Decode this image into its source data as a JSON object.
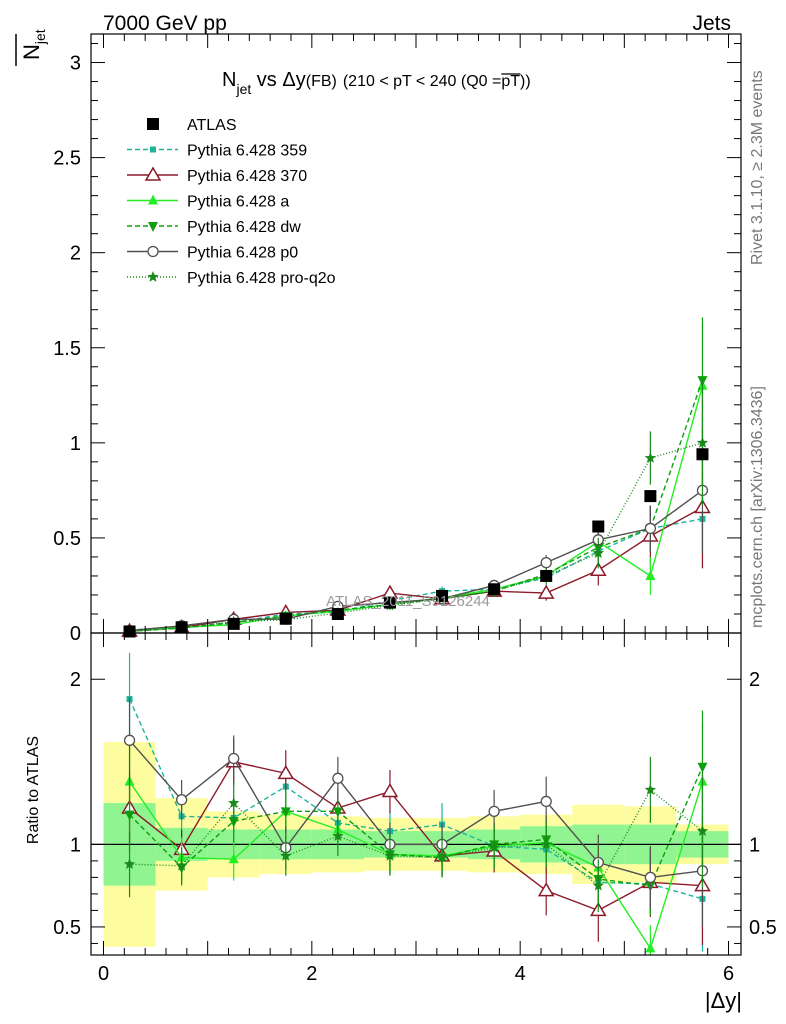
{
  "header": {
    "left": "7000 GeV pp",
    "right": "Jets"
  },
  "side_labels": {
    "rivet": "Rivet 3.1.10, ≥ 2.3M events",
    "mcplots": "mcplots.cern.ch [arXiv:1306.3436]"
  },
  "watermark": "ATLAS_2011_S9126244",
  "chart_data": {
    "type": "line",
    "title": "N_jet vs Δy (FB) (210 < pT < 240 (Q0 = pT))",
    "title_parts": {
      "main": "N",
      "sub": "jet",
      "vs": " vs ",
      "dy": "Δy",
      "fb": "(FB)",
      "range": "(210 < pT < 240 (Q0 =",
      "over": "pT",
      "close": "))"
    },
    "xlabel": "|Δy|",
    "ylabel": "N_jet",
    "ylabel_main": "N",
    "ylabel_sub": "jet",
    "xlim": [
      -0.12,
      6.12
    ],
    "ylim": [
      0,
      3.15
    ],
    "x_ticks": [
      0,
      2,
      4,
      6
    ],
    "y_ticks": [
      0,
      0.5,
      1,
      1.5,
      2,
      2.5,
      3
    ],
    "y_tick_labels": [
      "0",
      "0.5",
      "1",
      "1.5",
      "2",
      "2.5",
      "3"
    ],
    "x": [
      0.25,
      0.75,
      1.25,
      1.75,
      2.25,
      2.75,
      3.25,
      3.75,
      4.25,
      4.75,
      5.25,
      5.75
    ],
    "x_edges": [
      0,
      0.5,
      1.0,
      1.5,
      2.0,
      2.5,
      3.0,
      3.5,
      4.0,
      4.5,
      5.0,
      5.5,
      6.0
    ],
    "data": {
      "name": "ATLAS",
      "values": [
        0.008,
        0.03,
        0.048,
        0.075,
        0.1,
        0.16,
        0.195,
        0.23,
        0.3,
        0.56,
        0.72,
        0.94
      ],
      "band_inner": [
        0.25,
        0.1,
        0.09,
        0.09,
        0.09,
        0.08,
        0.08,
        0.09,
        0.11,
        0.12,
        0.12,
        0.08
      ],
      "band_outer": [
        0.62,
        0.28,
        0.2,
        0.18,
        0.17,
        0.16,
        0.16,
        0.17,
        0.18,
        0.24,
        0.23,
        0.12
      ]
    },
    "series": [
      {
        "name": "Pythia 6.428 359",
        "color": "#1db59a",
        "marker": "square-small",
        "dash": "5,3",
        "values": [
          0.015,
          0.034,
          0.055,
          0.1,
          0.11,
          0.17,
          0.22,
          0.23,
          0.29,
          0.43,
          0.55,
          0.6
        ],
        "errors": [
          0.003,
          0.004,
          0.006,
          0.01,
          0.012,
          0.02,
          0.025,
          0.025,
          0.04,
          0.08,
          0.12,
          0.25
        ]
      },
      {
        "name": "Pythia 6.428 370",
        "color": "#8b1a2a",
        "marker": "triangle-open",
        "dash": "",
        "values": [
          0.01,
          0.029,
          0.072,
          0.108,
          0.12,
          0.21,
          0.18,
          0.22,
          0.21,
          0.33,
          0.51,
          0.66
        ],
        "errors": [
          0.002,
          0.004,
          0.007,
          0.01,
          0.012,
          0.02,
          0.02,
          0.025,
          0.04,
          0.08,
          0.15,
          0.32
        ]
      },
      {
        "name": "Pythia 6.428 a",
        "color": "#22ee22",
        "marker": "triangle-filled",
        "dash": "",
        "values": [
          0.012,
          0.029,
          0.044,
          0.09,
          0.115,
          0.15,
          0.185,
          0.23,
          0.3,
          0.48,
          0.3,
          1.3
        ],
        "errors": [
          0.002,
          0.003,
          0.005,
          0.01,
          0.012,
          0.02,
          0.02,
          0.025,
          0.04,
          0.08,
          0.1,
          0.33
        ]
      },
      {
        "name": "Pythia 6.428 dw",
        "color": "#0d9f0d",
        "marker": "triangle-down",
        "dash": "5,3",
        "values": [
          0.009,
          0.026,
          0.055,
          0.09,
          0.12,
          0.15,
          0.18,
          0.22,
          0.31,
          0.45,
          0.55,
          1.33
        ],
        "errors": [
          0.002,
          0.003,
          0.006,
          0.01,
          0.012,
          0.02,
          0.02,
          0.025,
          0.04,
          0.07,
          0.12,
          0.33
        ]
      },
      {
        "name": "Pythia 6.428 p0",
        "color": "#505050",
        "marker": "circle-open",
        "dash": "",
        "values": [
          0.013,
          0.038,
          0.072,
          0.073,
          0.14,
          0.16,
          0.18,
          0.25,
          0.37,
          0.49,
          0.55,
          0.75
        ],
        "errors": [
          0.002,
          0.004,
          0.007,
          0.008,
          0.012,
          0.02,
          0.02,
          0.025,
          0.04,
          0.08,
          0.12,
          0.33
        ]
      },
      {
        "name": "Pythia 6.428 pro-q2o",
        "color": "#1a8a1a",
        "marker": "star",
        "dash": "1,2",
        "values": [
          0.007,
          0.026,
          0.06,
          0.07,
          0.105,
          0.145,
          0.18,
          0.22,
          0.3,
          0.42,
          0.92,
          1.0
        ],
        "errors": [
          0.002,
          0.003,
          0.006,
          0.008,
          0.01,
          0.02,
          0.02,
          0.025,
          0.04,
          0.08,
          0.14,
          0.33
        ]
      }
    ],
    "ratio": {
      "ylabel": "Ratio to ATLAS",
      "ylim": [
        0.33,
        2.28
      ],
      "y_ticks": [
        0.5,
        1,
        2
      ],
      "y_tick_labels": [
        "0.5",
        "1",
        "2"
      ],
      "series_values": [
        [
          1.88,
          1.17,
          1.16,
          1.35,
          1.13,
          1.08,
          1.12,
          0.99,
          0.97,
          0.77,
          0.76,
          0.67
        ],
        [
          1.22,
          0.97,
          1.5,
          1.43,
          1.22,
          1.32,
          0.93,
          0.96,
          0.72,
          0.6,
          0.77,
          0.75
        ],
        [
          1.38,
          0.92,
          0.91,
          1.2,
          1.09,
          0.94,
          0.93,
          0.99,
          1.01,
          0.86,
          0.37,
          1.38
        ],
        [
          1.18,
          0.86,
          1.14,
          1.2,
          1.2,
          0.94,
          0.92,
          1.0,
          1.03,
          0.79,
          0.75,
          1.47
        ],
        [
          1.63,
          1.27,
          1.52,
          0.98,
          1.4,
          1.0,
          1.0,
          1.2,
          1.26,
          0.89,
          0.8,
          0.84
        ],
        [
          0.88,
          0.87,
          1.25,
          0.93,
          1.05,
          0.93,
          0.92,
          0.98,
          1.0,
          0.75,
          1.33,
          1.08
        ]
      ],
      "series_errors": [
        [
          0.28,
          0.12,
          0.12,
          0.13,
          0.12,
          0.12,
          0.13,
          0.13,
          0.14,
          0.16,
          0.18,
          0.32
        ],
        [
          0.22,
          0.12,
          0.14,
          0.14,
          0.12,
          0.13,
          0.12,
          0.13,
          0.15,
          0.19,
          0.21,
          0.36
        ],
        [
          0.24,
          0.12,
          0.13,
          0.13,
          0.12,
          0.12,
          0.12,
          0.13,
          0.14,
          0.16,
          0.14,
          0.36
        ],
        [
          0.22,
          0.11,
          0.13,
          0.13,
          0.12,
          0.12,
          0.12,
          0.13,
          0.14,
          0.16,
          0.18,
          0.34
        ],
        [
          0.26,
          0.12,
          0.14,
          0.13,
          0.13,
          0.13,
          0.13,
          0.13,
          0.15,
          0.17,
          0.19,
          0.34
        ],
        [
          0.2,
          0.11,
          0.13,
          0.12,
          0.12,
          0.12,
          0.12,
          0.13,
          0.14,
          0.16,
          0.2,
          0.34
        ]
      ]
    },
    "colors": {
      "band_inner": "#90f590",
      "band_outer": "#fdfda0",
      "data": "#000000",
      "axis": "#000000"
    }
  }
}
